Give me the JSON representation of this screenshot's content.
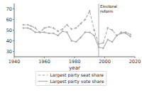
{
  "chart_data": {
    "type": "line",
    "x": [
      1946,
      1949,
      1951,
      1954,
      1957,
      1960,
      1963,
      1966,
      1969,
      1972,
      1975,
      1978,
      1981,
      1984,
      1987,
      1990,
      1993,
      1996,
      1999,
      2002,
      2005,
      2008,
      2011,
      2014,
      2017
    ],
    "series": [
      {
        "name": "Largest party seat share",
        "color": "#aaaaaa",
        "line_style": "dashed",
        "marker": "circle",
        "values": [
          55,
          55,
          54,
          52,
          48,
          52,
          53,
          52,
          49,
          51,
          55,
          51,
          52,
          56,
          60,
          68,
          50,
          37,
          38,
          52,
          50,
          45,
          48,
          48,
          46
        ]
      },
      {
        "name": "Largest party vote share",
        "color": "#aaaaaa",
        "line_style": "solid",
        "marker": "circle",
        "values": [
          52,
          52,
          51,
          48,
          48,
          48,
          47,
          47,
          45,
          49,
          48,
          40,
          39,
          43,
          48,
          48,
          45,
          34,
          33,
          41,
          39,
          45,
          47,
          47,
          44
        ]
      }
    ],
    "annotations": [
      {
        "x": 1996,
        "text": "Electoral\nreform"
      }
    ],
    "xlabel": "year",
    "xlim": [
      1940,
      2020
    ],
    "xticks": [
      1940,
      1960,
      1980,
      2000,
      2020
    ],
    "ylim": [
      25,
      75
    ],
    "yticks": [
      30,
      40,
      50,
      60,
      70
    ],
    "grid": false,
    "legend": "bottom"
  }
}
